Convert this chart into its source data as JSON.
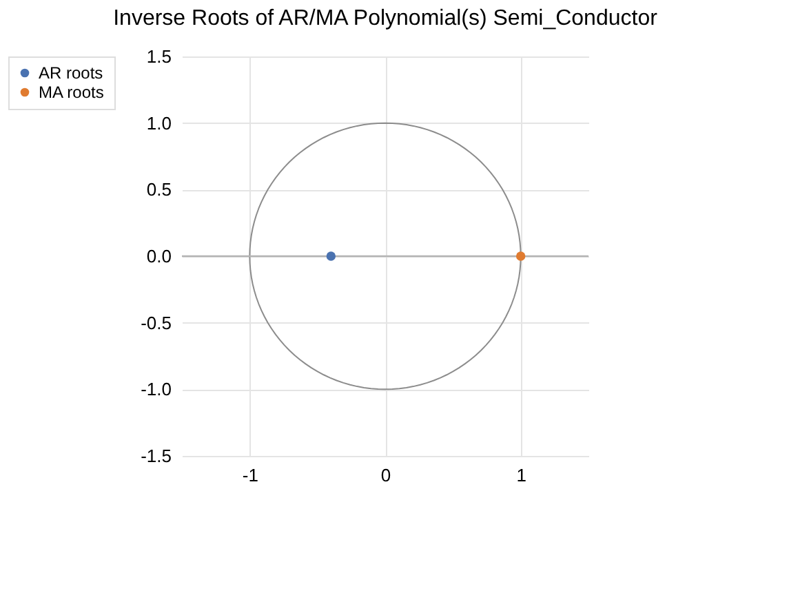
{
  "chart_data": {
    "type": "scatter",
    "title": "Inverse Roots of AR/MA Polynomial(s) Semi_Conductor",
    "xlim": [
      -1.5,
      1.5
    ],
    "xticks": [
      -1,
      0,
      1
    ],
    "ylim": [
      -1.5,
      1.5
    ],
    "yticks": [
      -1.5,
      {
        "value": -1,
        "label": "-1.0"
      },
      -0.5,
      {
        "value": 0,
        "label": "0.0"
      },
      0.5,
      {
        "value": 1,
        "label": "1.0"
      },
      1.5
    ],
    "grid": true,
    "legend": "left",
    "marker": "circle",
    "ref_lines": [
      {
        "axis": "y",
        "value": 0,
        "color": "#b4b4b4"
      }
    ],
    "series": [
      {
        "name": "AR roots",
        "color": "#4a72b0",
        "x": [
          -0.4
        ],
        "values": [
          0
        ]
      },
      {
        "name": "MA roots",
        "type": "scatter",
        "color": "#e07b30",
        "x": [
          1.0
        ],
        "values": [
          0
        ]
      }
    ]
  }
}
